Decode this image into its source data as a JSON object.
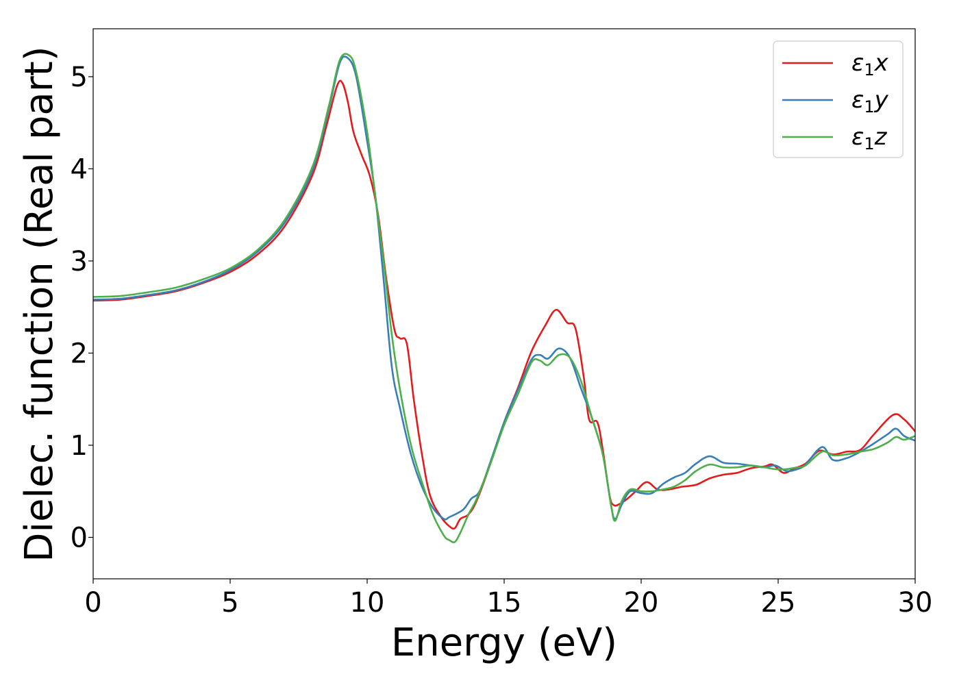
{
  "chart_data": {
    "type": "line",
    "title": "",
    "xlabel": "Energy (eV)",
    "ylabel": "Dielec. function (Real part)",
    "xlim": [
      0,
      30
    ],
    "ylim": [
      -0.45,
      5.52
    ],
    "xticks": [
      0,
      5,
      10,
      15,
      20,
      25,
      30
    ],
    "xtick_labels": [
      "0",
      "5",
      "10",
      "15",
      "20",
      "25",
      "30"
    ],
    "yticks": [
      0,
      1,
      2,
      3,
      4,
      5
    ],
    "ytick_labels": [
      "0",
      "1",
      "2",
      "3",
      "4",
      "5"
    ],
    "grid": false,
    "legend_position": "top-right",
    "series": [
      {
        "name": "ε1x",
        "legend": {
          "base": "ε",
          "sub": "1",
          "var": "x"
        },
        "color": "#e41a1c",
        "x": [
          0,
          1,
          2,
          3,
          4,
          5,
          6,
          7,
          8,
          8.5,
          8.9,
          9.1,
          9.3,
          9.5,
          9.8,
          10.1,
          10.4,
          10.7,
          11.0,
          11.2,
          11.45,
          11.7,
          12.0,
          12.3,
          12.7,
          13.0,
          13.2,
          13.4,
          13.7,
          14.0,
          14.5,
          15.0,
          15.5,
          16.0,
          16.5,
          16.9,
          17.3,
          17.6,
          17.9,
          18.1,
          18.4,
          18.6,
          18.85,
          19.0,
          19.2,
          19.5,
          19.8,
          20.2,
          20.6,
          21.0,
          21.5,
          22.0,
          22.5,
          23.0,
          23.5,
          24.0,
          24.5,
          24.8,
          25.2,
          25.6,
          26.0,
          26.5,
          27.0,
          27.5,
          28.0,
          28.5,
          29.2,
          29.6,
          30.0
        ],
        "y": [
          2.57,
          2.58,
          2.62,
          2.67,
          2.76,
          2.88,
          3.07,
          3.38,
          3.93,
          4.45,
          4.9,
          4.93,
          4.72,
          4.4,
          4.15,
          3.92,
          3.5,
          2.8,
          2.25,
          2.16,
          2.1,
          1.5,
          0.9,
          0.45,
          0.22,
          0.12,
          0.1,
          0.2,
          0.25,
          0.4,
          0.8,
          1.25,
          1.62,
          2.02,
          2.3,
          2.47,
          2.33,
          2.27,
          1.75,
          1.28,
          1.25,
          0.95,
          0.45,
          0.35,
          0.36,
          0.42,
          0.5,
          0.6,
          0.52,
          0.52,
          0.55,
          0.57,
          0.64,
          0.68,
          0.7,
          0.75,
          0.77,
          0.79,
          0.7,
          0.75,
          0.8,
          0.94,
          0.9,
          0.93,
          0.95,
          1.12,
          1.33,
          1.28,
          1.15
        ]
      },
      {
        "name": "ε1y",
        "legend": {
          "base": "ε",
          "sub": "1",
          "var": "y"
        },
        "color": "#377eb8",
        "x": [
          0,
          1,
          2,
          3,
          4,
          5,
          6,
          7,
          8,
          8.6,
          9.0,
          9.3,
          9.6,
          10.0,
          10.3,
          10.6,
          10.9,
          11.2,
          11.6,
          12.0,
          12.4,
          12.8,
          13.0,
          13.5,
          13.8,
          14.1,
          14.5,
          15.0,
          15.5,
          16.0,
          16.3,
          16.6,
          17.0,
          17.4,
          17.8,
          18.2,
          18.6,
          18.9,
          19.05,
          19.3,
          19.6,
          20.0,
          20.4,
          20.8,
          21.2,
          21.6,
          22.0,
          22.5,
          23.0,
          23.5,
          24.0,
          24.5,
          24.9,
          25.3,
          25.7,
          26.0,
          26.6,
          27.0,
          27.5,
          28.0,
          28.5,
          29.0,
          29.3,
          29.6,
          30.0
        ],
        "y": [
          2.58,
          2.59,
          2.63,
          2.68,
          2.77,
          2.9,
          3.1,
          3.42,
          3.98,
          4.65,
          5.15,
          5.2,
          5.0,
          4.3,
          3.7,
          2.8,
          1.85,
          1.4,
          0.9,
          0.55,
          0.32,
          0.2,
          0.22,
          0.3,
          0.42,
          0.5,
          0.82,
          1.25,
          1.6,
          1.93,
          1.98,
          1.94,
          2.05,
          1.95,
          1.62,
          1.3,
          0.9,
          0.35,
          0.2,
          0.36,
          0.5,
          0.48,
          0.48,
          0.58,
          0.65,
          0.7,
          0.8,
          0.88,
          0.81,
          0.8,
          0.78,
          0.76,
          0.78,
          0.72,
          0.74,
          0.79,
          0.98,
          0.84,
          0.86,
          0.93,
          1.02,
          1.12,
          1.18,
          1.1,
          1.05
        ]
      },
      {
        "name": "ε1z",
        "legend": {
          "base": "ε",
          "sub": "1",
          "var": "z"
        },
        "color": "#4daf4a",
        "x": [
          0,
          1,
          2,
          3,
          4,
          5,
          6,
          7,
          8,
          8.6,
          9.0,
          9.35,
          9.6,
          10.0,
          10.3,
          10.6,
          10.9,
          11.2,
          11.6,
          12.0,
          12.4,
          12.8,
          13.0,
          13.2,
          13.4,
          13.7,
          14.0,
          14.5,
          15.0,
          15.5,
          16.0,
          16.3,
          16.6,
          17.0,
          17.4,
          17.8,
          18.2,
          18.6,
          18.9,
          19.05,
          19.3,
          19.6,
          20.0,
          20.4,
          20.8,
          21.2,
          21.6,
          22.0,
          22.5,
          23.0,
          23.5,
          24.0,
          24.5,
          24.9,
          25.3,
          25.7,
          26.0,
          26.6,
          27.0,
          27.5,
          28.0,
          28.5,
          29.0,
          29.3,
          29.6,
          30.0
        ],
        "y": [
          2.61,
          2.62,
          2.66,
          2.71,
          2.8,
          2.92,
          3.12,
          3.45,
          4.02,
          4.68,
          5.18,
          5.23,
          5.05,
          4.4,
          3.7,
          3.0,
          2.2,
          1.6,
          1.0,
          0.6,
          0.25,
          0.02,
          -0.03,
          -0.05,
          0.05,
          0.25,
          0.42,
          0.8,
          1.22,
          1.55,
          1.9,
          1.92,
          1.87,
          1.98,
          1.95,
          1.7,
          1.3,
          0.9,
          0.35,
          0.18,
          0.4,
          0.52,
          0.5,
          0.5,
          0.52,
          0.55,
          0.62,
          0.72,
          0.79,
          0.76,
          0.76,
          0.78,
          0.76,
          0.74,
          0.74,
          0.76,
          0.78,
          0.93,
          0.89,
          0.9,
          0.93,
          0.96,
          1.03,
          1.09,
          1.06,
          1.1
        ]
      }
    ]
  }
}
